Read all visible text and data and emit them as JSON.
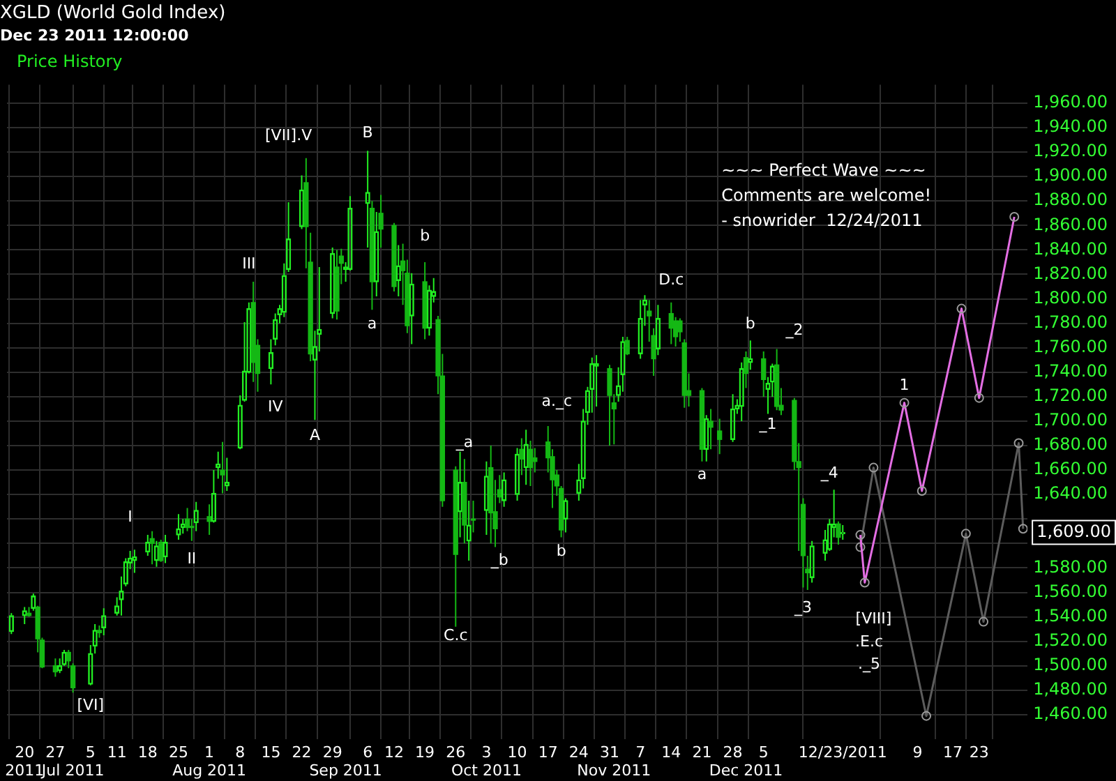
{
  "chart_data": {
    "type": "candlestick",
    "title": "XGLD (World Gold Index)",
    "subtitle": "Dec 23 2011 12:00:00",
    "xlim": [
      "2011-06-16",
      "2012-02-03"
    ],
    "xticks": [
      {
        "value": "2011-06-20",
        "label": "20"
      },
      {
        "value": "2011-06-27",
        "label": "27"
      },
      {
        "value": "2011-07-05",
        "label": "5"
      },
      {
        "value": "2011-07-11",
        "label": "11"
      },
      {
        "value": "2011-07-18",
        "label": "18"
      },
      {
        "value": "2011-07-25",
        "label": "25"
      },
      {
        "value": "2011-08-01",
        "label": "1"
      },
      {
        "value": "2011-08-08",
        "label": "8"
      },
      {
        "value": "2011-08-15",
        "label": "15"
      },
      {
        "value": "2011-08-22",
        "label": "22"
      },
      {
        "value": "2011-08-29",
        "label": "29"
      },
      {
        "value": "2011-09-06",
        "label": "6"
      },
      {
        "value": "2011-09-12",
        "label": "12"
      },
      {
        "value": "2011-09-19",
        "label": "19"
      },
      {
        "value": "2011-09-26",
        "label": "26"
      },
      {
        "value": "2011-10-03",
        "label": "3"
      },
      {
        "value": "2011-10-10",
        "label": "10"
      },
      {
        "value": "2011-10-17",
        "label": "17"
      },
      {
        "value": "2011-10-24",
        "label": "24"
      },
      {
        "value": "2011-10-31",
        "label": "31"
      },
      {
        "value": "2011-11-07",
        "label": "7"
      },
      {
        "value": "2011-11-14",
        "label": "14"
      },
      {
        "value": "2011-11-21",
        "label": "21"
      },
      {
        "value": "2011-11-28",
        "label": "28"
      },
      {
        "value": "2011-12-05",
        "label": "5"
      },
      {
        "value": "2011-12-23",
        "label": "12/23/2011"
      },
      {
        "value": "2012-01-09",
        "label": "9"
      },
      {
        "value": "2012-01-17",
        "label": "17"
      },
      {
        "value": "2012-01-23",
        "label": "23"
      }
    ],
    "ylim": [
      1440,
      1975
    ],
    "yticks": [
      {
        "value": 1460,
        "label": "1,460.00"
      },
      {
        "value": 1480,
        "label": "1,480.00"
      },
      {
        "value": 1500,
        "label": "1,500.00"
      },
      {
        "value": 1520,
        "label": "1,520.00"
      },
      {
        "value": 1540,
        "label": "1,540.00"
      },
      {
        "value": 1560,
        "label": "1,560.00"
      },
      {
        "value": 1580,
        "label": "1,580.00"
      },
      {
        "value": 1600,
        "label": null
      },
      {
        "value": 1620,
        "label": null
      },
      {
        "value": 1640,
        "label": "1,640.00"
      },
      {
        "value": 1660,
        "label": "1,660.00"
      },
      {
        "value": 1680,
        "label": "1,680.00"
      },
      {
        "value": 1700,
        "label": "1,700.00"
      },
      {
        "value": 1720,
        "label": "1,720.00"
      },
      {
        "value": 1740,
        "label": "1,740.00"
      },
      {
        "value": 1760,
        "label": "1,760.00"
      },
      {
        "value": 1780,
        "label": "1,780.00"
      },
      {
        "value": 1800,
        "label": "1,800.00"
      },
      {
        "value": 1820,
        "label": "1,820.00"
      },
      {
        "value": 1840,
        "label": "1,840.00"
      },
      {
        "value": 1860,
        "label": "1,860.00"
      },
      {
        "value": 1880,
        "label": "1,880.00"
      },
      {
        "value": 1900,
        "label": "1,900.00"
      },
      {
        "value": 1920,
        "label": "1,920.00"
      },
      {
        "value": 1940,
        "label": "1,940.00"
      },
      {
        "value": 1960,
        "label": "1,960.00"
      }
    ],
    "grid": true,
    "legend": "top left",
    "marker": "circle",
    "series": [
      {
        "type": "candlestick",
        "name": "Price History",
        "color": "#22ee22",
        "colors": [
          "#22ee22",
          "#22ee22",
          "#14b814",
          "#22ee22",
          "#14b814",
          "#14b814",
          "#14b814",
          "#22ee22",
          "#22ee22",
          "#14b814",
          "#14b814",
          "#22ee22",
          "#22ee22",
          "#14b814",
          "#22ee22",
          "#22ee22",
          "#22ee22",
          "#22ee22",
          "#22ee22",
          "#22ee22",
          "#22ee22",
          "#14b814",
          "#22ee22",
          "#14b814",
          "#22ee22",
          "#22ee22",
          "#22ee22",
          "#14b814",
          "#14b814",
          "#22ee22",
          "#14b814",
          "#22ee22",
          "#22ee22",
          "#14b814",
          "#22ee22",
          "#22ee22",
          "#22ee22",
          "#22ee22",
          "#14b814",
          "#14b814",
          "#22ee22",
          "#22ee22",
          "#22ee22",
          "#22ee22",
          "#22ee22",
          "#22ee22",
          "#14b814",
          "#14b814",
          "#22ee22",
          "#22ee22",
          "#22ee22",
          "#14b814",
          "#14b814",
          "#22ee22",
          "#22ee22",
          "#22ee22",
          "#14b814",
          "#22ee22",
          "#14b814",
          "#14b814",
          "#22ee22",
          "#14b814",
          "#14b814",
          "#22ee22",
          "#14b814",
          "#22ee22",
          "#22ee22",
          "#14b814",
          "#14b814",
          "#14b814",
          "#22ee22",
          "#14b814",
          "#22ee22",
          "#14b814",
          "#22ee22",
          "#14b814",
          "#14b814",
          "#14b814",
          "#22ee22",
          "#22ee22",
          "#14b814",
          "#22ee22",
          "#14b814",
          "#14b814",
          "#14b814",
          "#14b814",
          "#14b814",
          "#14b814",
          "#22ee22",
          "#22ee22",
          "#22ee22",
          "#22ee22",
          "#22ee22",
          "#22ee22",
          "#14b814",
          "#14b814",
          "#22ee22",
          "#22ee22",
          "#14b814",
          "#22ee22",
          "#22ee22",
          "#14b814",
          "#14b814",
          "#22ee22",
          "#14b814",
          "#14b814",
          "#14b814",
          "#14b814",
          "#14b814",
          "#14b814",
          "#22ee22",
          "#14b814",
          "#14b814",
          "#22ee22",
          "#22ee22",
          "#22ee22",
          "#14b814",
          "#22ee22",
          "#14b814",
          "#22ee22",
          "#22ee22",
          "#14b814",
          "#14b814",
          "#14b814",
          "#14b814",
          "#14b814",
          "#14b814",
          "#22ee22",
          "#22ee22",
          "#22ee22",
          "#22ee22",
          "#14b814",
          "#22ee22"
        ],
        "x": [
          "2011-06-17",
          "2011-06-20",
          "2011-06-21",
          "2011-06-22",
          "2011-06-23",
          "2011-06-24",
          "2011-06-27",
          "2011-06-28",
          "2011-06-29",
          "2011-06-30",
          "2011-07-01",
          "2011-07-05",
          "2011-07-06",
          "2011-07-07",
          "2011-07-08",
          "2011-07-11",
          "2011-07-12",
          "2011-07-13",
          "2011-07-14",
          "2011-07-15",
          "2011-07-18",
          "2011-07-19",
          "2011-07-20",
          "2011-07-21",
          "2011-07-22",
          "2011-07-25",
          "2011-07-26",
          "2011-07-27",
          "2011-07-28",
          "2011-07-29",
          "2011-08-01",
          "2011-08-02",
          "2011-08-03",
          "2011-08-04",
          "2011-08-05",
          "2011-08-08",
          "2011-08-09",
          "2011-08-10",
          "2011-08-11",
          "2011-08-12",
          "2011-08-15",
          "2011-08-16",
          "2011-08-17",
          "2011-08-18",
          "2011-08-19",
          "2011-08-22",
          "2011-08-23",
          "2011-08-24",
          "2011-08-25",
          "2011-08-26",
          "2011-08-29",
          "2011-08-30",
          "2011-08-31",
          "2011-09-01",
          "2011-09-02",
          "2011-09-06",
          "2011-09-07",
          "2011-09-08",
          "2011-09-09",
          "2011-09-12",
          "2011-09-13",
          "2011-09-14",
          "2011-09-15",
          "2011-09-16",
          "2011-09-19",
          "2011-09-20",
          "2011-09-21",
          "2011-09-22",
          "2011-09-23",
          "2011-09-26",
          "2011-09-27",
          "2011-09-28",
          "2011-09-29",
          "2011-09-30",
          "2011-10-03",
          "2011-10-04",
          "2011-10-05",
          "2011-10-06",
          "2011-10-07",
          "2011-10-10",
          "2011-10-11",
          "2011-10-12",
          "2011-10-13",
          "2011-10-14",
          "2011-10-17",
          "2011-10-18",
          "2011-10-19",
          "2011-10-20",
          "2011-10-21",
          "2011-10-24",
          "2011-10-25",
          "2011-10-26",
          "2011-10-27",
          "2011-10-28",
          "2011-10-31",
          "2011-11-01",
          "2011-11-02",
          "2011-11-03",
          "2011-11-04",
          "2011-11-07",
          "2011-11-08",
          "2011-11-09",
          "2011-11-10",
          "2011-11-11",
          "2011-11-14",
          "2011-11-15",
          "2011-11-16",
          "2011-11-17",
          "2011-11-18",
          "2011-11-21",
          "2011-11-22",
          "2011-11-23",
          "2011-11-25",
          "2011-11-28",
          "2011-11-29",
          "2011-11-30",
          "2011-12-01",
          "2011-12-02",
          "2011-12-05",
          "2011-12-06",
          "2011-12-07",
          "2011-12-08",
          "2011-12-09",
          "2011-12-12",
          "2011-12-13",
          "2011-12-14",
          "2011-12-15",
          "2011-12-16",
          "2011-12-19",
          "2011-12-20",
          "2011-12-21",
          "2011-12-22",
          "2011-12-23"
        ],
        "ohlc": [
          [
            1528,
            1543,
            1526,
            1541
          ],
          [
            1541,
            1548,
            1534,
            1545
          ],
          [
            1543,
            1548,
            1540,
            1541
          ],
          [
            1547,
            1559,
            1545,
            1557
          ],
          [
            1548,
            1549,
            1511,
            1522
          ],
          [
            1521,
            1523,
            1498,
            1499
          ],
          [
            1500,
            1506,
            1491,
            1495
          ],
          [
            1496,
            1506,
            1494,
            1500
          ],
          [
            1501,
            1513,
            1500,
            1511
          ],
          [
            1511,
            1513,
            1498,
            1504
          ],
          [
            1500,
            1502,
            1478,
            1482
          ],
          [
            1485,
            1517,
            1484,
            1510
          ],
          [
            1516,
            1534,
            1510,
            1529
          ],
          [
            1529,
            1533,
            1523,
            1527
          ],
          [
            1531,
            1547,
            1525,
            1541
          ],
          [
            1543,
            1556,
            1541,
            1549
          ],
          [
            1554,
            1573,
            1541,
            1561
          ],
          [
            1567,
            1588,
            1565,
            1585
          ],
          [
            1584,
            1594,
            1579,
            1588
          ],
          [
            1586,
            1595,
            1576,
            1589
          ],
          [
            1593,
            1607,
            1590,
            1601
          ],
          [
            1604,
            1610,
            1583,
            1600
          ],
          [
            1586,
            1602,
            1581,
            1598
          ],
          [
            1601,
            1603,
            1585,
            1586
          ],
          [
            1589,
            1607,
            1584,
            1601
          ],
          [
            1607,
            1624,
            1603,
            1612
          ],
          [
            1613,
            1620,
            1608,
            1616
          ],
          [
            1620,
            1629,
            1610,
            1613
          ],
          [
            1614,
            1620,
            1602,
            1613
          ],
          [
            1617,
            1634,
            1610,
            1627
          ],
          [
            1622,
            1632,
            1607,
            1618
          ],
          [
            1618,
            1660,
            1617,
            1641
          ],
          [
            1662,
            1675,
            1653,
            1665
          ],
          [
            1660,
            1683,
            1641,
            1656
          ],
          [
            1647,
            1670,
            1643,
            1650
          ],
          [
            1678,
            1721,
            1677,
            1713
          ],
          [
            1717,
            1781,
            1716,
            1741
          ],
          [
            1740,
            1797,
            1739,
            1792
          ],
          [
            1797,
            1814,
            1732,
            1748
          ],
          [
            1762,
            1767,
            1724,
            1739
          ],
          [
            1743,
            1767,
            1730,
            1756
          ],
          [
            1767,
            1788,
            1762,
            1783
          ],
          [
            1787,
            1795,
            1780,
            1792
          ],
          [
            1789,
            1829,
            1785,
            1819
          ],
          [
            1824,
            1879,
            1822,
            1849
          ],
          [
            1859,
            1901,
            1857,
            1889
          ],
          [
            1895,
            1915,
            1825,
            1859
          ],
          [
            1830,
            1854,
            1749,
            1755
          ],
          [
            1750,
            1774,
            1701,
            1761
          ],
          [
            1771,
            1826,
            1757,
            1775
          ],
          [
            1788,
            1842,
            1784,
            1837
          ],
          [
            1826,
            1840,
            1783,
            1790
          ],
          [
            1835,
            1841,
            1812,
            1829
          ],
          [
            1824,
            1830,
            1814,
            1826
          ],
          [
            1824,
            1884,
            1823,
            1874
          ],
          [
            1878,
            1921,
            1842,
            1887
          ],
          [
            1874,
            1880,
            1791,
            1814
          ],
          [
            1814,
            1871,
            1802,
            1855
          ],
          [
            1870,
            1885,
            1842,
            1857
          ],
          [
            1860,
            1862,
            1806,
            1810
          ],
          [
            1815,
            1844,
            1802,
            1827
          ],
          [
            1831,
            1845,
            1795,
            1823
          ],
          [
            1821,
            1832,
            1772,
            1778
          ],
          [
            1786,
            1821,
            1763,
            1812
          ],
          [
            1814,
            1830,
            1767,
            1776
          ],
          [
            1776,
            1811,
            1770,
            1807
          ],
          [
            1802,
            1817,
            1797,
            1806
          ],
          [
            1783,
            1786,
            1722,
            1737
          ],
          [
            1737,
            1755,
            1630,
            1635
          ],
          [
            1660,
            1663,
            1532,
            1591
          ],
          [
            1626,
            1675,
            1605,
            1650
          ],
          [
            1650,
            1669,
            1600,
            1615
          ],
          [
            1602,
            1635,
            1586,
            1615
          ],
          [
            1620,
            1635,
            1609,
            1619
          ],
          [
            1627,
            1667,
            1607,
            1655
          ],
          [
            1662,
            1680,
            1600,
            1625
          ],
          [
            1626,
            1652,
            1597,
            1612
          ],
          [
            1644,
            1656,
            1633,
            1638
          ],
          [
            1635,
            1658,
            1630,
            1652
          ],
          [
            1640,
            1678,
            1635,
            1673
          ],
          [
            1677,
            1686,
            1656,
            1669
          ],
          [
            1662,
            1693,
            1648,
            1681
          ],
          [
            1677,
            1684,
            1647,
            1662
          ],
          [
            1670,
            1678,
            1658,
            1667
          ],
          [
            1683,
            1696,
            1658,
            1670
          ],
          [
            1671,
            1677,
            1629,
            1652
          ],
          [
            1656,
            1660,
            1639,
            1647
          ],
          [
            1645,
            1647,
            1605,
            1611
          ],
          [
            1620,
            1637,
            1609,
            1635
          ],
          [
            1641,
            1665,
            1635,
            1652
          ],
          [
            1653,
            1710,
            1645,
            1700
          ],
          [
            1707,
            1728,
            1697,
            1725
          ],
          [
            1726,
            1752,
            1707,
            1747
          ],
          [
            1745,
            1754,
            1712,
            1747
          ],
          [
            1743,
            1746,
            1680,
            1721
          ],
          [
            1715,
            1722,
            1681,
            1710
          ],
          [
            1721,
            1744,
            1716,
            1729
          ],
          [
            1738,
            1769,
            1724,
            1765
          ],
          [
            1766,
            1769,
            1754,
            1755
          ],
          [
            1755,
            1799,
            1751,
            1784
          ],
          [
            1795,
            1803,
            1778,
            1799
          ],
          [
            1790,
            1799,
            1765,
            1786
          ],
          [
            1770,
            1776,
            1737,
            1751
          ],
          [
            1759,
            1795,
            1754,
            1784
          ],
          [
            1788,
            1797,
            1763,
            1776
          ],
          [
            1782,
            1785,
            1761,
            1769
          ],
          [
            1782,
            1784,
            1765,
            1773
          ],
          [
            1764,
            1767,
            1711,
            1721
          ],
          [
            1725,
            1739,
            1712,
            1721
          ],
          [
            1725,
            1727,
            1667,
            1677
          ],
          [
            1677,
            1705,
            1667,
            1702
          ],
          [
            1700,
            1710,
            1677,
            1695
          ],
          [
            1692,
            1702,
            1673,
            1685
          ],
          [
            1685,
            1722,
            1683,
            1710
          ],
          [
            1710,
            1718,
            1706,
            1713
          ],
          [
            1712,
            1748,
            1700,
            1743
          ],
          [
            1752,
            1757,
            1727,
            1739
          ],
          [
            1748,
            1766,
            1742,
            1751
          ],
          [
            1751,
            1757,
            1720,
            1734
          ],
          [
            1726,
            1736,
            1706,
            1731
          ],
          [
            1732,
            1747,
            1720,
            1745
          ],
          [
            1746,
            1759,
            1709,
            1712
          ],
          [
            1713,
            1727,
            1705,
            1709
          ],
          [
            1717,
            1719,
            1660,
            1667
          ],
          [
            1667,
            1682,
            1594,
            1662
          ],
          [
            1632,
            1637,
            1564,
            1590
          ],
          [
            1579,
            1590,
            1562,
            1576
          ],
          [
            1572,
            1602,
            1568,
            1598
          ],
          [
            1592,
            1611,
            1586,
            1603
          ],
          [
            1595,
            1620,
            1594,
            1616
          ],
          [
            1613,
            1644,
            1605,
            1616
          ],
          [
            1616,
            1618,
            1599,
            1605
          ],
          [
            1608,
            1615,
            1603,
            1609
          ]
        ]
      },
      {
        "type": "line",
        "color": "#e36ee3",
        "x": [
          "2011-12-27",
          "2011-12-28",
          "2012-01-06",
          "2012-01-10",
          "2012-01-19",
          "2012-01-23",
          "2012-01-31"
        ],
        "values": [
          1607,
          1568,
          1715,
          1643,
          1792,
          1719,
          1867
        ]
      },
      {
        "type": "line",
        "color": "#5c5c5c",
        "x": [
          "2011-12-27",
          "2011-12-30",
          "2012-01-11",
          "2012-01-20",
          "2012-01-24",
          "2012-02-01",
          "2012-02-02"
        ],
        "values": [
          1597,
          1662,
          1459,
          1608,
          1536,
          1682,
          1612
        ]
      }
    ],
    "annotations": [
      "~~~ Perfect Wave ~~~",
      "Comments are welcome!",
      "- snowrider  12/24/2011",
      "1,609.00",
      "[VI]",
      "I",
      "II",
      "III",
      "IV",
      "[VII].V",
      "A",
      "B",
      "a",
      "b",
      "C.c",
      "_a",
      "_b",
      "a._c",
      "b",
      "D.c",
      "a",
      "b",
      "_1",
      "_2",
      "_3",
      "_4",
      "[VIII]",
      ".E.c",
      "._5",
      "1",
      "2011",
      "Jul 2011",
      "Aug 2011",
      "Sep 2011",
      "Oct 2011",
      "Nov 2011",
      "Dec 2011"
    ]
  }
}
